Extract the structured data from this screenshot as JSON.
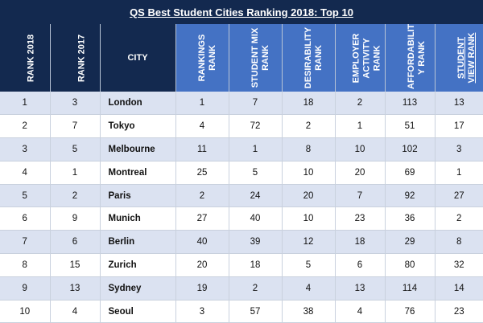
{
  "title": "QS Best Student Cities Ranking 2018: Top 10",
  "headers": {
    "rank2018": "RANK 2018",
    "rank2017": "RANK 2017",
    "city": "CITY",
    "rankings": [
      "RANKINGS",
      "RANK"
    ],
    "student_mix": [
      "STUDENT MIX",
      "RANK"
    ],
    "desirability": [
      "DESIRABILITY",
      "RANK"
    ],
    "employer": [
      "EMPLOYER",
      "ACTIVITY",
      "RANK"
    ],
    "affordability": [
      "AFFORDABILIT",
      "Y RANK"
    ],
    "student_view": [
      "STUDENT",
      "VIEW RANK"
    ]
  },
  "colors": {
    "title_bg": "#13294f",
    "header_dark": "#13294f",
    "header_blue": "#4472c4",
    "row_alt": "#dbe2f1"
  },
  "rows": [
    {
      "rank2018": "1",
      "rank2017": "3",
      "city": "London",
      "rankings": "1",
      "student_mix": "7",
      "desirability": "18",
      "employer": "2",
      "affordability": "113",
      "student_view": "13"
    },
    {
      "rank2018": "2",
      "rank2017": "7",
      "city": "Tokyo",
      "rankings": "4",
      "student_mix": "72",
      "desirability": "2",
      "employer": "1",
      "affordability": "51",
      "student_view": "17"
    },
    {
      "rank2018": "3",
      "rank2017": "5",
      "city": "Melbourne",
      "rankings": "11",
      "student_mix": "1",
      "desirability": "8",
      "employer": "10",
      "affordability": "102",
      "student_view": "3"
    },
    {
      "rank2018": "4",
      "rank2017": "1",
      "city": "Montreal",
      "rankings": "25",
      "student_mix": "5",
      "desirability": "10",
      "employer": "20",
      "affordability": "69",
      "student_view": "1"
    },
    {
      "rank2018": "5",
      "rank2017": "2",
      "city": "Paris",
      "rankings": "2",
      "student_mix": "24",
      "desirability": "20",
      "employer": "7",
      "affordability": "92",
      "student_view": "27"
    },
    {
      "rank2018": "6",
      "rank2017": "9",
      "city": "Munich",
      "rankings": "27",
      "student_mix": "40",
      "desirability": "10",
      "employer": "23",
      "affordability": "36",
      "student_view": "2"
    },
    {
      "rank2018": "7",
      "rank2017": "6",
      "city": "Berlin",
      "rankings": "40",
      "student_mix": "39",
      "desirability": "12",
      "employer": "18",
      "affordability": "29",
      "student_view": "8"
    },
    {
      "rank2018": "8",
      "rank2017": "15",
      "city": "Zurich",
      "rankings": "20",
      "student_mix": "18",
      "desirability": "5",
      "employer": "6",
      "affordability": "80",
      "student_view": "32"
    },
    {
      "rank2018": "9",
      "rank2017": "13",
      "city": "Sydney",
      "rankings": "19",
      "student_mix": "2",
      "desirability": "4",
      "employer": "13",
      "affordability": "114",
      "student_view": "14"
    },
    {
      "rank2018": "10",
      "rank2017": "4",
      "city": "Seoul",
      "rankings": "3",
      "student_mix": "57",
      "desirability": "38",
      "employer": "4",
      "affordability": "76",
      "student_view": "23"
    }
  ]
}
